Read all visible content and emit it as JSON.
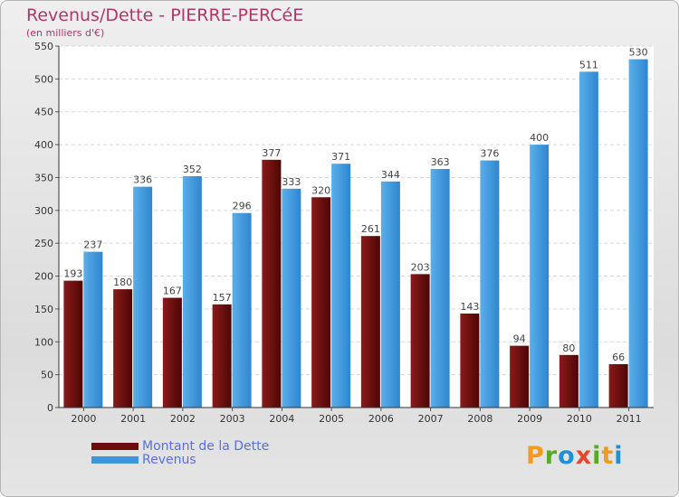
{
  "header": {
    "title": "Revenus/Dette - PIERRE-PERCéE",
    "subtitle": "(en milliers d'€)"
  },
  "chart_data": {
    "type": "bar",
    "title": "Revenus/Dette - PIERRE-PERCéE",
    "ylabel": "(en milliers d'€)",
    "xlabel": "",
    "categories": [
      "2000",
      "2001",
      "2002",
      "2003",
      "2004",
      "2005",
      "2006",
      "2007",
      "2008",
      "2009",
      "2010",
      "2011"
    ],
    "series": [
      {
        "name": "Montant de la Dette",
        "color": "#6b0d0d",
        "values": [
          193,
          180,
          167,
          157,
          377,
          320,
          261,
          203,
          143,
          94,
          80,
          66
        ]
      },
      {
        "name": "Revenus",
        "color": "#3d96dc",
        "values": [
          237,
          336,
          352,
          296,
          333,
          371,
          344,
          363,
          376,
          400,
          511,
          530
        ]
      }
    ],
    "ylim": [
      0,
      550
    ],
    "yticks": [
      0,
      50,
      100,
      150,
      200,
      250,
      300,
      350,
      400,
      450,
      500,
      550
    ],
    "grid": true,
    "legend": "bottom-left"
  },
  "legend": {
    "items": [
      {
        "label": "Montant de la Dette",
        "color": "#6b0d0d"
      },
      {
        "label": "Revenus",
        "color": "#3d96dc"
      }
    ]
  },
  "logo": {
    "letters": [
      {
        "ch": "P",
        "color": "#f39a1c"
      },
      {
        "ch": "r",
        "color": "#5aa82a"
      },
      {
        "ch": "o",
        "color": "#1f8fd6"
      },
      {
        "ch": "x",
        "color": "#e8462a"
      },
      {
        "ch": "i",
        "color": "#5aa82a"
      },
      {
        "ch": "t",
        "color": "#f39a1c"
      },
      {
        "ch": "i",
        "color": "#1f8fd6"
      }
    ]
  }
}
